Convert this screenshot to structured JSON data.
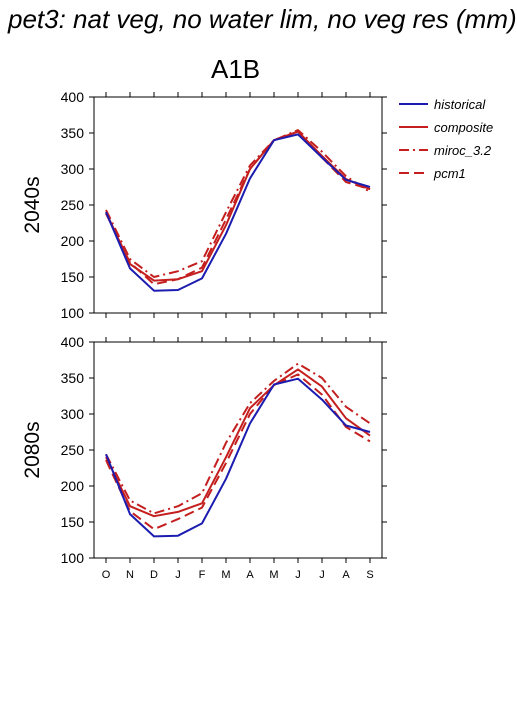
{
  "title": "pet3: nat veg, no water lim, no veg res (mm)",
  "scenario": "A1B",
  "chart_data": {
    "type": "line",
    "categories": [
      "O",
      "N",
      "D",
      "J",
      "F",
      "M",
      "A",
      "M",
      "J",
      "J",
      "A",
      "S"
    ],
    "ylim": [
      100,
      400
    ],
    "yticks": [
      100,
      150,
      200,
      250,
      300,
      350,
      400
    ],
    "legend_placement": "right",
    "grid": false,
    "panels": [
      {
        "label": "2040s",
        "series": [
          {
            "name": "historical",
            "color": "#1c1cb0",
            "style": "solid",
            "values": [
              240,
              162,
              131,
              132,
              148,
              210,
              287,
              340,
              348,
              316,
              285,
              275
            ]
          },
          {
            "name": "composite",
            "color": "#c41e1e",
            "style": "solid",
            "values": [
              240,
              168,
              145,
              147,
              158,
              222,
              300,
              340,
              352,
              318,
              286,
              272
            ]
          },
          {
            "name": "miroc_3.2",
            "color": "#c41e1e",
            "style": "dashdot",
            "values": [
              243,
              175,
              150,
              158,
              172,
              240,
              305,
              340,
              354,
              324,
              290,
              268
            ]
          },
          {
            "name": "pcm1",
            "color": "#c41e1e",
            "style": "dashed",
            "values": [
              238,
              170,
              140,
              147,
              163,
              230,
              300,
              340,
              352,
              316,
              282,
              272
            ]
          }
        ]
      },
      {
        "label": "2080s",
        "series": [
          {
            "name": "historical",
            "color": "#1c1cb0",
            "style": "solid",
            "values": [
              244,
              161,
              130,
              131,
              148,
              210,
              287,
              341,
              349,
              320,
              284,
              275
            ]
          },
          {
            "name": "composite",
            "color": "#c41e1e",
            "style": "solid",
            "values": [
              240,
              172,
              158,
              164,
              176,
              240,
              308,
              340,
              362,
              338,
              294,
              270
            ]
          },
          {
            "name": "miroc_3.2",
            "color": "#c41e1e",
            "style": "dashdot",
            "values": [
              244,
              180,
              162,
              172,
              190,
              260,
              315,
              346,
              370,
              350,
              310,
              287
            ]
          },
          {
            "name": "pcm1",
            "color": "#c41e1e",
            "style": "dashed",
            "values": [
              236,
              165,
              140,
              154,
              170,
              232,
              300,
              340,
              355,
              327,
              282,
              262
            ]
          }
        ]
      }
    ]
  }
}
